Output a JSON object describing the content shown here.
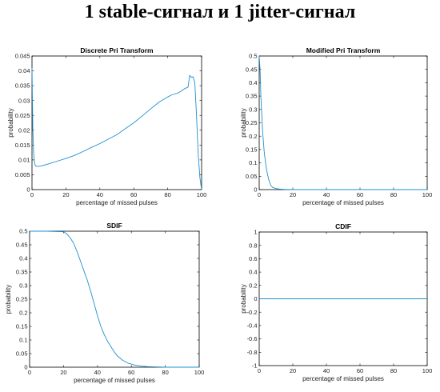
{
  "page": {
    "title": "1 stable-сигнал и 1 jitter-сигнал"
  },
  "colors": {
    "series": "#1f8fd0",
    "axes": "#000000",
    "background": "#ffffff"
  },
  "chart_data": [
    {
      "type": "line",
      "title": "Discrete Pri Transform",
      "xlabel": "percentage of missed pulses",
      "ylabel": "probability",
      "xlim": [
        0,
        100
      ],
      "ylim": [
        0,
        0.045
      ],
      "xticks": [
        0,
        20,
        40,
        60,
        80,
        100
      ],
      "yticks": [
        0,
        0.005,
        0.01,
        0.015,
        0.02,
        0.025,
        0.03,
        0.035,
        0.04,
        0.045
      ],
      "ytick_labels": [
        "0",
        "0.005",
        "0.01",
        "0.015",
        "0.02",
        "0.025",
        "0.03",
        "0.035",
        "0.04",
        "0.045"
      ],
      "grid": false,
      "series": [
        {
          "x": [
            0,
            0.5,
            1,
            1.5,
            2,
            3,
            5,
            10,
            15,
            20,
            25,
            30,
            35,
            40,
            45,
            50,
            55,
            60,
            65,
            70,
            75,
            80,
            82,
            84,
            86,
            88,
            90,
            92,
            93,
            94,
            95,
            96,
            97,
            98,
            99,
            100
          ],
          "y": [
            0.041,
            0.02,
            0.012,
            0.009,
            0.008,
            0.0078,
            0.0079,
            0.0087,
            0.0096,
            0.0105,
            0.0115,
            0.0128,
            0.0142,
            0.0155,
            0.017,
            0.0185,
            0.0205,
            0.0225,
            0.0248,
            0.0272,
            0.0295,
            0.0312,
            0.0318,
            0.0322,
            0.0325,
            0.0332,
            0.034,
            0.0345,
            0.0385,
            0.0378,
            0.038,
            0.036,
            0.025,
            0.012,
            0.004,
            0.0
          ]
        }
      ]
    },
    {
      "type": "line",
      "title": "Modified Pri Transform",
      "xlabel": "percentage of missed pulses",
      "ylabel": "probability",
      "xlim": [
        0,
        100
      ],
      "ylim": [
        0,
        0.5
      ],
      "xticks": [
        0,
        20,
        40,
        60,
        80,
        100
      ],
      "yticks": [
        0,
        0.05,
        0.1,
        0.15,
        0.2,
        0.25,
        0.3,
        0.35,
        0.4,
        0.45,
        0.5
      ],
      "ytick_labels": [
        "0",
        "0.05",
        "0.1",
        "0.15",
        "0.2",
        "0.25",
        "0.3",
        "0.35",
        "0.4",
        "0.45",
        "0.5"
      ],
      "grid": false,
      "series": [
        {
          "x": [
            0,
            0.5,
            1,
            2,
            3,
            4,
            5,
            6,
            7,
            8,
            10,
            12,
            15,
            20,
            40,
            60,
            80,
            100
          ],
          "y": [
            0.5,
            0.45,
            0.35,
            0.22,
            0.14,
            0.09,
            0.055,
            0.03,
            0.015,
            0.008,
            0.004,
            0.002,
            0.001,
            0.0,
            0.0,
            0.0,
            0.0,
            0.0
          ]
        }
      ]
    },
    {
      "type": "line",
      "title": "SDIF",
      "xlabel": "percentage of missed pulses",
      "ylabel": "probability",
      "xlim": [
        0,
        100
      ],
      "ylim": [
        0,
        0.5
      ],
      "xticks": [
        0,
        20,
        40,
        60,
        80,
        100
      ],
      "yticks": [
        0,
        0.05,
        0.1,
        0.15,
        0.2,
        0.25,
        0.3,
        0.35,
        0.4,
        0.45,
        0.5
      ],
      "ytick_labels": [
        "0",
        "0.05",
        "0.1",
        "0.15",
        "0.2",
        "0.25",
        "0.3",
        "0.35",
        "0.4",
        "0.45",
        "0.5"
      ],
      "grid": false,
      "series": [
        {
          "x": [
            0,
            10,
            20,
            22,
            24,
            26,
            28,
            30,
            32,
            34,
            36,
            38,
            40,
            42,
            44,
            46,
            48,
            50,
            52,
            55,
            58,
            62,
            66,
            70,
            80,
            100
          ],
          "y": [
            0.5,
            0.5,
            0.498,
            0.49,
            0.475,
            0.455,
            0.425,
            0.39,
            0.355,
            0.32,
            0.28,
            0.235,
            0.19,
            0.15,
            0.12,
            0.095,
            0.075,
            0.055,
            0.04,
            0.025,
            0.015,
            0.008,
            0.004,
            0.002,
            0.0,
            0.0
          ]
        }
      ]
    },
    {
      "type": "line",
      "title": "CDIF",
      "xlabel": "percentage of missed pulses",
      "ylabel": "probability",
      "xlim": [
        0,
        100
      ],
      "ylim": [
        -1,
        1
      ],
      "xticks": [
        0,
        20,
        40,
        60,
        80,
        100
      ],
      "yticks": [
        -1,
        -0.8,
        -0.6,
        -0.4,
        -0.2,
        0,
        0.2,
        0.4,
        0.6,
        0.8,
        1
      ],
      "ytick_labels": [
        "-1",
        "-0.8",
        "-0.6",
        "-0.4",
        "-0.2",
        "0",
        "0.2",
        "0.4",
        "0.6",
        "0.8",
        "1"
      ],
      "grid": false,
      "series": [
        {
          "x": [
            0,
            100
          ],
          "y": [
            0,
            0
          ]
        }
      ]
    }
  ]
}
